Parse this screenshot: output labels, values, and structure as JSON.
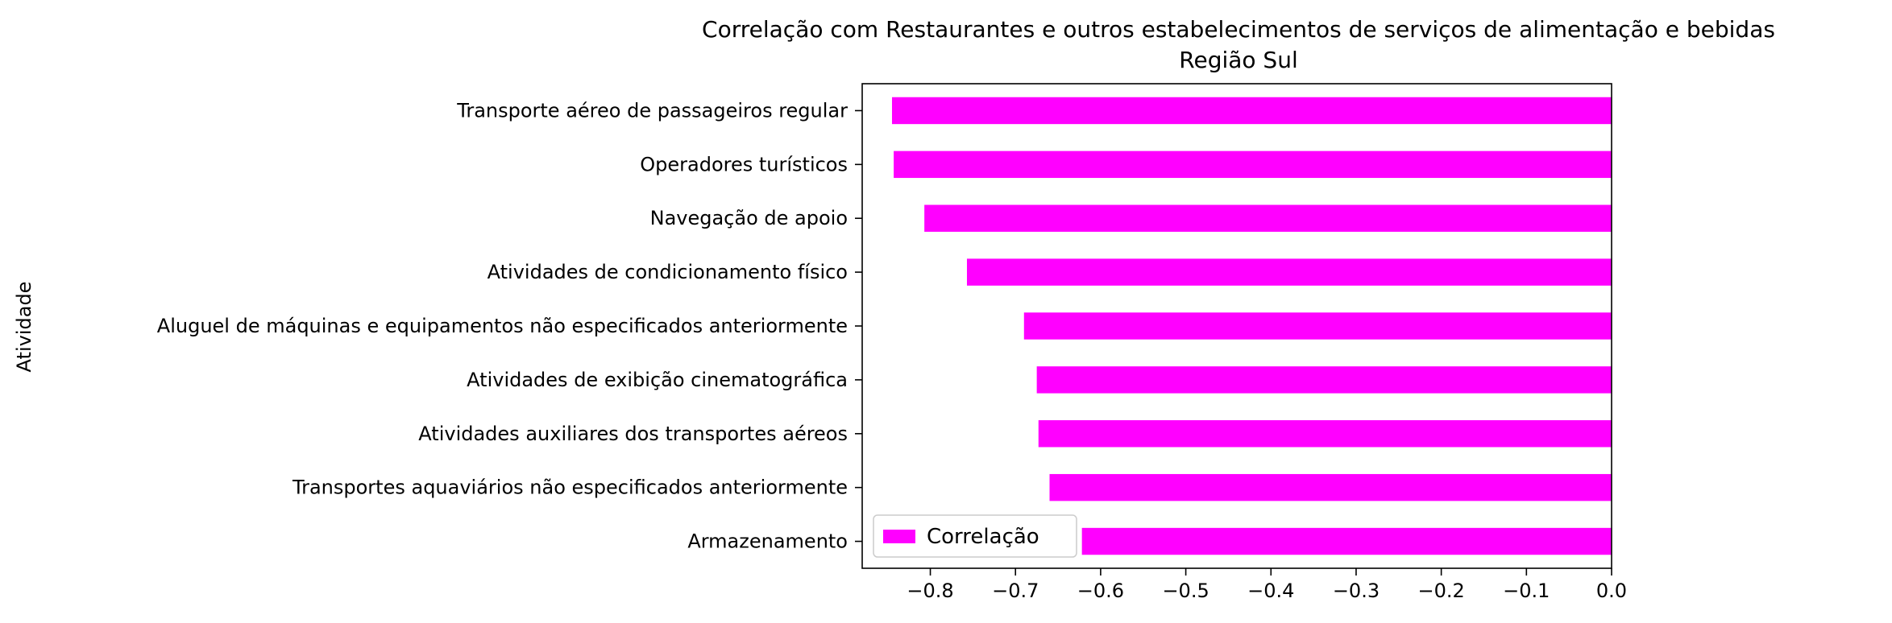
{
  "chart_data": {
    "type": "bar",
    "orientation": "horizontal",
    "title": "Correlação com Restaurantes e outros estabelecimentos de serviços de alimentação e bebidas",
    "subtitle": "Região Sul",
    "xlabel": "",
    "ylabel": "Atividade",
    "categories": [
      "Transporte aéreo de passageiros regular",
      "Operadores turísticos",
      "Navegação de apoio",
      "Atividades de condicionamento físico",
      "Aluguel de máquinas e equipamentos não especificados anteriormente",
      "Atividades de exibição cinematográfica",
      "Atividades auxiliares dos transportes aéreos",
      "Transportes aquaviários não especificados anteriormente",
      "Armazenamento"
    ],
    "series": [
      {
        "name": "Correlação",
        "color": "#ff00ff",
        "values": [
          -0.845,
          -0.843,
          -0.807,
          -0.757,
          -0.69,
          -0.675,
          -0.673,
          -0.66,
          -0.622
        ]
      }
    ],
    "xlim": [
      -0.88,
      0.0
    ],
    "xticks": [
      -0.8,
      -0.7,
      -0.6,
      -0.5,
      -0.4,
      -0.3,
      -0.2,
      -0.1,
      0.0
    ],
    "xtick_labels": [
      "−0.8",
      "−0.7",
      "−0.6",
      "−0.5",
      "−0.4",
      "−0.3",
      "−0.2",
      "−0.1",
      "0.0"
    ],
    "grid": false,
    "legend_position": "lower-left"
  }
}
